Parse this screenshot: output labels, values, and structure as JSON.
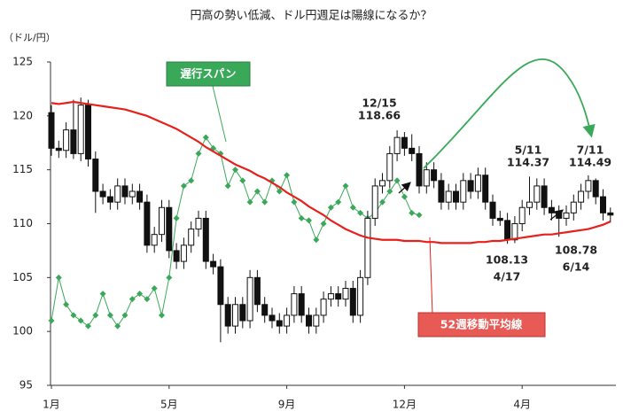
{
  "chart_data": {
    "type": "candlestick",
    "title": "円高の勢い低減、ドル円週足は陽線になるか？",
    "y_unit": "（ドル/円）",
    "ylim": [
      95,
      125
    ],
    "yticks": [
      95,
      100,
      105,
      110,
      115,
      120,
      125
    ],
    "categories": [
      "1月",
      null,
      null,
      null,
      null,
      null,
      null,
      null,
      null,
      null,
      null,
      null,
      null,
      null,
      null,
      null,
      "5月",
      null,
      null,
      null,
      null,
      null,
      null,
      null,
      null,
      null,
      null,
      null,
      null,
      null,
      null,
      null,
      "9月",
      null,
      null,
      null,
      null,
      null,
      null,
      null,
      null,
      null,
      null,
      null,
      null,
      null,
      null,
      null,
      "12月",
      null,
      null,
      null,
      null,
      null,
      null,
      null,
      null,
      null,
      null,
      null,
      null,
      null,
      null,
      null,
      "4月",
      null,
      null,
      null,
      null,
      null,
      null,
      null,
      null,
      null,
      null,
      null,
      null
    ],
    "ohlc": {
      "open": [
        120.3,
        117.0,
        116.8,
        118.7,
        116.5,
        121.0,
        116.0,
        113.0,
        112.5,
        112.0,
        113.5,
        112.5,
        113.0,
        112.0,
        108.0,
        109.0,
        111.5,
        107.5,
        106.5,
        108.0,
        109.5,
        110.5,
        106.5,
        106.0,
        102.5,
        100.5,
        102.5,
        101.0,
        105.0,
        102.5,
        101.5,
        101.0,
        100.5,
        101.5,
        103.5,
        101.5,
        100.5,
        101.5,
        103.0,
        103.5,
        103.0,
        104.0,
        101.5,
        105.0,
        110.5,
        113.5,
        114.0,
        116.5,
        118.0,
        117.0,
        116.5,
        113.5,
        115.0,
        114.0,
        112.0,
        113.0,
        112.0,
        114.0,
        113.0,
        114.5,
        112.0,
        110.5,
        110.3,
        108.5,
        110.0,
        111.5,
        112.0,
        113.5,
        111.5,
        111.0,
        110.5,
        111.0,
        112.0,
        113.0,
        114.0,
        112.5,
        111.0
      ],
      "high": [
        121.0,
        117.7,
        119.4,
        121.5,
        121.7,
        121.5,
        116.7,
        113.7,
        113.2,
        114.2,
        114.2,
        113.7,
        113.7,
        112.7,
        109.7,
        112.2,
        112.2,
        108.2,
        108.7,
        110.2,
        111.2,
        111.2,
        107.2,
        106.7,
        103.2,
        103.2,
        103.2,
        105.7,
        105.7,
        103.2,
        102.2,
        101.7,
        102.2,
        104.2,
        104.2,
        102.2,
        102.2,
        103.7,
        104.2,
        104.2,
        104.7,
        104.7,
        105.7,
        111.2,
        114.2,
        114.7,
        117.2,
        118.66,
        118.5,
        118.3,
        117.2,
        115.7,
        115.7,
        114.7,
        113.7,
        113.7,
        114.7,
        114.7,
        115.2,
        115.2,
        112.7,
        111.2,
        111.0,
        110.7,
        112.2,
        114.37,
        114.2,
        114.2,
        112.2,
        111.7,
        111.7,
        112.7,
        113.7,
        114.49,
        114.2,
        113.2,
        111.5
      ],
      "low": [
        116.3,
        116.1,
        116.1,
        116.0,
        115.8,
        115.3,
        111.0,
        111.8,
        111.3,
        111.3,
        111.8,
        111.8,
        111.3,
        107.3,
        107.3,
        108.3,
        106.8,
        105.8,
        105.8,
        107.3,
        108.8,
        105.8,
        105.3,
        99.0,
        99.8,
        99.8,
        100.3,
        100.3,
        101.8,
        100.8,
        100.3,
        99.8,
        99.8,
        100.8,
        100.8,
        99.8,
        99.8,
        100.8,
        102.3,
        102.3,
        102.3,
        100.8,
        100.8,
        104.3,
        109.8,
        112.8,
        113.3,
        115.8,
        116.3,
        115.8,
        112.8,
        112.8,
        113.3,
        111.3,
        111.3,
        111.3,
        111.3,
        112.3,
        112.3,
        111.3,
        109.8,
        109.8,
        108.13,
        108.2,
        109.3,
        110.8,
        111.3,
        110.8,
        110.3,
        108.78,
        109.8,
        110.3,
        111.3,
        112.3,
        111.8,
        110.3,
        110.1
      ],
      "close": [
        117.0,
        116.8,
        118.7,
        116.5,
        121.0,
        116.0,
        113.0,
        112.5,
        112.0,
        113.5,
        112.5,
        113.0,
        112.0,
        108.0,
        109.0,
        111.5,
        107.5,
        106.5,
        108.0,
        109.5,
        110.5,
        106.5,
        106.0,
        102.5,
        100.5,
        102.5,
        101.0,
        105.0,
        102.5,
        101.5,
        101.0,
        100.5,
        101.5,
        103.5,
        101.5,
        100.5,
        101.5,
        103.0,
        103.5,
        103.0,
        104.0,
        101.5,
        105.0,
        110.5,
        113.5,
        114.0,
        116.5,
        118.0,
        117.0,
        116.5,
        113.5,
        115.0,
        114.0,
        112.0,
        113.0,
        112.0,
        114.0,
        113.0,
        114.5,
        112.0,
        110.5,
        110.3,
        108.5,
        110.0,
        111.5,
        112.0,
        113.5,
        111.5,
        111.0,
        110.5,
        111.0,
        112.0,
        113.0,
        114.0,
        112.5,
        111.0,
        110.8
      ]
    },
    "series": [
      {
        "name": "52週移動平均線",
        "color": "#e8201c",
        "values": [
          121.2,
          121.1,
          121.2,
          121.3,
          121.2,
          121.1,
          121.0,
          120.9,
          120.8,
          120.7,
          120.6,
          120.4,
          120.2,
          120.0,
          119.7,
          119.4,
          119.1,
          118.8,
          118.4,
          118.0,
          117.6,
          117.1,
          116.7,
          116.3,
          115.9,
          115.5,
          115.2,
          114.9,
          114.5,
          114.2,
          113.8,
          113.4,
          112.9,
          112.5,
          112.1,
          111.6,
          111.2,
          110.8,
          110.3,
          109.9,
          109.5,
          109.2,
          108.9,
          108.7,
          108.6,
          108.5,
          108.5,
          108.5,
          108.4,
          108.4,
          108.4,
          108.3,
          108.3,
          108.2,
          108.2,
          108.2,
          108.2,
          108.2,
          108.3,
          108.3,
          108.4,
          108.4,
          108.5,
          108.6,
          108.7,
          108.8,
          108.9,
          109.0,
          109.0,
          109.1,
          109.2,
          109.3,
          109.4,
          109.5,
          109.7,
          109.9,
          110.2
        ]
      },
      {
        "name": "遅行スパン",
        "color": "#3aa859",
        "values": [
          101.0,
          105.0,
          102.5,
          101.5,
          101.0,
          100.5,
          101.5,
          103.5,
          101.5,
          100.5,
          101.5,
          103.0,
          103.5,
          103.0,
          104.0,
          101.5,
          105.0,
          110.5,
          113.5,
          114.0,
          116.5,
          118.0,
          117.0,
          116.5,
          113.5,
          115.0,
          114.0,
          112.0,
          113.0,
          112.0,
          114.0,
          113.0,
          114.5,
          112.0,
          110.5,
          110.3,
          108.5,
          110.0,
          111.5,
          112.0,
          113.5,
          111.5,
          111.0,
          110.5,
          111.0,
          112.0,
          113.0,
          114.0,
          112.5,
          111.0,
          110.8,
          null,
          null,
          null,
          null,
          null,
          null,
          null,
          null,
          null,
          null,
          null,
          null,
          null,
          null,
          null,
          null,
          null,
          null,
          null,
          null,
          null,
          null,
          null,
          null,
          null,
          null
        ]
      }
    ],
    "annotations": [
      "12/15",
      "118.66",
      "5/11",
      "114.37",
      "7/11",
      "114.49",
      "108.13",
      "4/17",
      "108.78",
      "6/14"
    ]
  }
}
